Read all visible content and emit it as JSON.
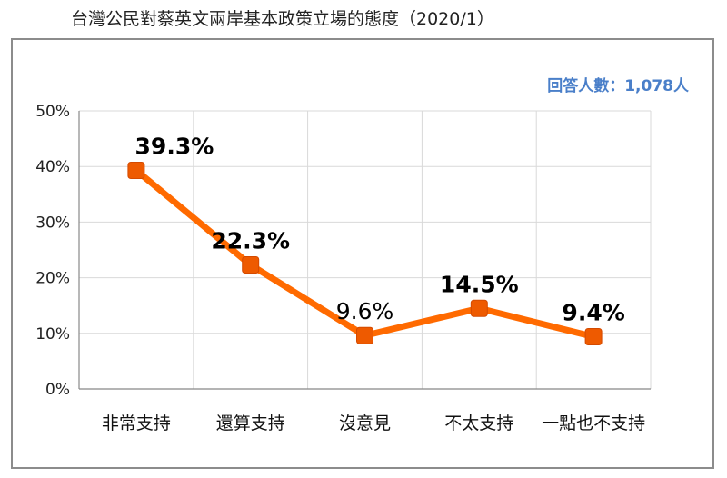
{
  "title": "台灣公民對蔡英文兩岸基本政策立場的態度（2020/1）",
  "respondents_note": "回答人數：1,078人",
  "colors": {
    "line": "#ff6a00",
    "marker": "#ee5a00",
    "grid": "#d9d9d9",
    "axis": "#888888",
    "note": "#4a7fc9"
  },
  "chart_data": {
    "type": "line",
    "categories": [
      "非常支持",
      "還算支持",
      "沒意見",
      "不太支持",
      "一點也不支持"
    ],
    "values": [
      39.3,
      22.3,
      9.6,
      14.5,
      9.4
    ],
    "value_labels": [
      "39.3%",
      "22.3%",
      "9.6%",
      "14.5%",
      "9.4%"
    ],
    "label_bold": [
      true,
      true,
      false,
      true,
      true
    ],
    "ylim": [
      0,
      50
    ],
    "yticks": [
      0,
      10,
      20,
      30,
      40,
      50
    ],
    "ytick_labels": [
      "0%",
      "10%",
      "20%",
      "30%",
      "40%",
      "50%"
    ],
    "grid": true,
    "xlabel": "",
    "ylabel": ""
  }
}
